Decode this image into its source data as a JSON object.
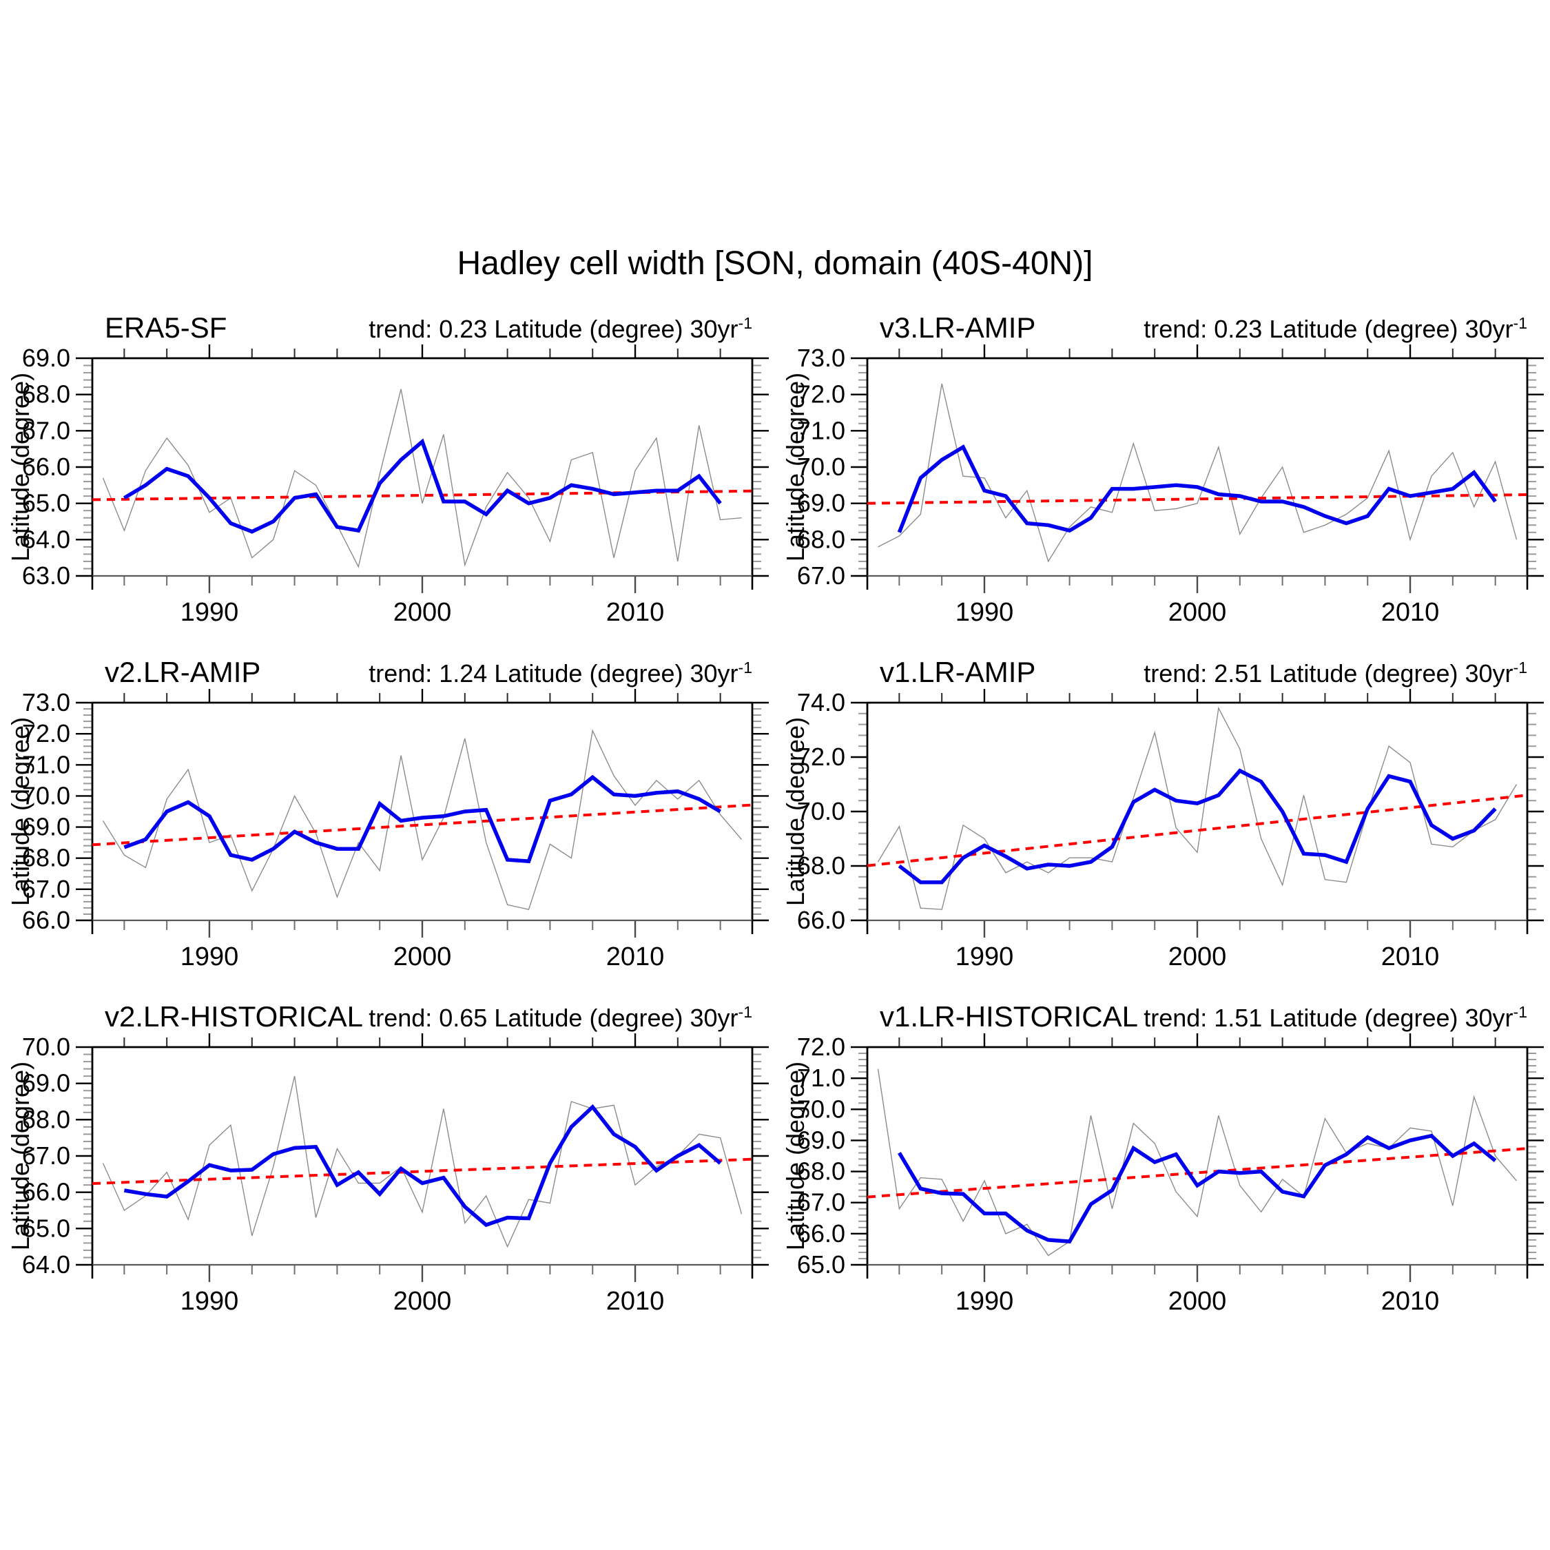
{
  "title": "Hadley cell width [SON, domain (40S-40N)]",
  "colors": {
    "annual": "#8c8c8c",
    "smoothed": "#0000ee",
    "trend": "#ff0000",
    "axis": "#000000",
    "bottom_axis": "#5a5a5a",
    "bottom_tick": "#4a4a4a",
    "bottom_minor": "#6f6f6f",
    "side_minor": "#9a9a9a",
    "top_minor": "#2a2a2a"
  },
  "chart_data": [
    {
      "type": "line",
      "title": "ERA5-SF",
      "trend_text": "trend: 0.23 Latitude (degree) 30yr",
      "trend_sup": "-1",
      "ylabel": "Latitude (degree)",
      "ylim": [
        63.0,
        69.0
      ],
      "ytick_step": 1.0,
      "yminor_step": 0.2,
      "xlim": [
        1984.5,
        2015.5
      ],
      "xticks": [
        1990,
        2000,
        2010
      ],
      "xminor": {
        "start": 1986,
        "end": 2014,
        "step": 2
      },
      "trend_line": {
        "x": [
          1984.5,
          2015.5
        ],
        "y": [
          65.1,
          65.34
        ]
      },
      "series": [
        {
          "name": "annual",
          "start_year": 1985,
          "values": [
            65.7,
            64.25,
            65.9,
            66.8,
            66.05,
            64.75,
            65.15,
            63.5,
            64.0,
            65.9,
            65.5,
            64.4,
            63.25,
            65.8,
            68.15,
            65.0,
            66.9,
            63.3,
            64.9,
            65.85,
            65.15,
            63.95,
            66.2,
            66.4,
            63.5,
            65.9,
            66.8,
            63.4,
            67.15,
            64.55,
            64.6
          ]
        },
        {
          "name": "smoothed",
          "start_year": 1986,
          "values": [
            65.15,
            65.5,
            65.95,
            65.75,
            65.15,
            64.45,
            64.22,
            64.5,
            65.15,
            65.25,
            64.35,
            64.25,
            65.55,
            66.2,
            66.7,
            65.05,
            65.05,
            64.7,
            65.35,
            65.0,
            65.15,
            65.5,
            65.4,
            65.25,
            65.3,
            65.35,
            65.35,
            65.75,
            65.0
          ]
        }
      ]
    },
    {
      "type": "line",
      "title": "v3.LR-AMIP",
      "trend_text": "trend: 0.23 Latitude (degree) 30yr",
      "trend_sup": "-1",
      "ylabel": "Latitude (degree)",
      "ylim": [
        67.0,
        73.0
      ],
      "ytick_step": 1.0,
      "yminor_step": 0.2,
      "xlim": [
        1984.5,
        2015.5
      ],
      "xticks": [
        1990,
        2000,
        2010
      ],
      "xminor": {
        "start": 1986,
        "end": 2014,
        "step": 2
      },
      "trend_line": {
        "x": [
          1984.5,
          2015.5
        ],
        "y": [
          69.0,
          69.24
        ]
      },
      "series": [
        {
          "name": "annual",
          "start_year": 1985,
          "values": [
            67.8,
            68.1,
            68.7,
            72.3,
            69.75,
            69.7,
            68.6,
            69.35,
            67.4,
            68.35,
            68.9,
            68.75,
            70.65,
            68.8,
            68.85,
            69.0,
            70.55,
            68.15,
            69.15,
            70.0,
            68.2,
            68.4,
            68.7,
            69.15,
            70.45,
            68.0,
            69.75,
            70.4,
            68.9,
            70.15,
            68.0
          ]
        },
        {
          "name": "smoothed",
          "start_year": 1986,
          "values": [
            68.2,
            69.7,
            70.2,
            70.55,
            69.35,
            69.2,
            68.45,
            68.4,
            68.25,
            68.6,
            69.4,
            69.4,
            69.45,
            69.5,
            69.45,
            69.25,
            69.2,
            69.05,
            69.05,
            68.9,
            68.65,
            68.45,
            68.65,
            69.4,
            69.2,
            69.3,
            69.4,
            69.85,
            69.05
          ]
        }
      ]
    },
    {
      "type": "line",
      "title": "v2.LR-AMIP",
      "trend_text": "trend: 1.24 Latitude (degree) 30yr",
      "trend_sup": "-1",
      "ylabel": "Latitude (degree)",
      "ylim": [
        66.0,
        73.0
      ],
      "ytick_step": 1.0,
      "yminor_step": 0.2,
      "xlim": [
        1984.5,
        2015.5
      ],
      "xticks": [
        1990,
        2000,
        2010
      ],
      "xminor": {
        "start": 1986,
        "end": 2014,
        "step": 2
      },
      "trend_line": {
        "x": [
          1984.5,
          2015.5
        ],
        "y": [
          68.43,
          69.71
        ]
      },
      "series": [
        {
          "name": "annual",
          "start_year": 1985,
          "values": [
            69.2,
            68.1,
            67.7,
            69.9,
            70.85,
            68.5,
            68.75,
            66.95,
            68.3,
            70.0,
            68.8,
            66.75,
            68.5,
            67.6,
            71.3,
            67.95,
            69.3,
            71.85,
            68.5,
            66.5,
            66.35,
            68.45,
            68.0,
            72.1,
            70.65,
            69.7,
            70.5,
            69.9,
            70.5,
            69.4,
            68.6
          ]
        },
        {
          "name": "smoothed",
          "start_year": 1986,
          "values": [
            68.35,
            68.6,
            69.5,
            69.8,
            69.35,
            68.1,
            67.95,
            68.3,
            68.85,
            68.5,
            68.3,
            68.3,
            69.75,
            69.2,
            69.3,
            69.35,
            69.5,
            69.55,
            67.95,
            67.9,
            69.85,
            70.05,
            70.6,
            70.05,
            70.0,
            70.1,
            70.15,
            69.9,
            69.5
          ]
        }
      ]
    },
    {
      "type": "line",
      "title": "v1.LR-AMIP",
      "trend_text": "trend: 2.51 Latitude (degree) 30yr",
      "trend_sup": "-1",
      "ylabel": "Latitude (degree)",
      "ylim": [
        66.0,
        74.0
      ],
      "ytick_step": 2.0,
      "yminor_step": 0.4,
      "xlim": [
        1984.5,
        2015.5
      ],
      "xticks": [
        1990,
        2000,
        2010
      ],
      "xminor": {
        "start": 1986,
        "end": 2014,
        "step": 2
      },
      "trend_line": {
        "x": [
          1984.5,
          2015.5
        ],
        "y": [
          68.01,
          70.6
        ]
      },
      "series": [
        {
          "name": "annual",
          "start_year": 1985,
          "values": [
            68.15,
            69.45,
            66.45,
            66.4,
            69.5,
            69.0,
            67.75,
            68.15,
            67.75,
            68.3,
            68.3,
            68.15,
            70.5,
            72.9,
            69.4,
            68.5,
            73.8,
            72.3,
            69.0,
            67.3,
            70.6,
            67.5,
            67.4,
            70.0,
            72.4,
            71.8,
            68.8,
            68.7,
            69.3,
            69.7,
            71.0
          ]
        },
        {
          "name": "smoothed",
          "start_year": 1986,
          "values": [
            68.0,
            67.4,
            67.4,
            68.3,
            68.75,
            68.35,
            67.9,
            68.05,
            68.0,
            68.15,
            68.7,
            70.35,
            70.8,
            70.4,
            70.3,
            70.6,
            71.5,
            71.1,
            70.0,
            68.45,
            68.4,
            68.15,
            70.1,
            71.3,
            71.1,
            69.5,
            69.0,
            69.3,
            70.1
          ]
        }
      ]
    },
    {
      "type": "line",
      "title": "v2.LR-HISTORICAL",
      "trend_text": "trend: 0.65 Latitude (degree) 30yr",
      "trend_sup": "-1",
      "ylabel": "Latitude (degree)",
      "ylim": [
        64.0,
        70.0
      ],
      "ytick_step": 1.0,
      "yminor_step": 0.2,
      "xlim": [
        1984.5,
        2015.5
      ],
      "xticks": [
        1990,
        2000,
        2010
      ],
      "xminor": {
        "start": 1986,
        "end": 2014,
        "step": 2
      },
      "trend_line": {
        "x": [
          1984.5,
          2015.5
        ],
        "y": [
          66.24,
          66.91
        ]
      },
      "series": [
        {
          "name": "annual",
          "start_year": 1985,
          "values": [
            66.8,
            65.5,
            65.9,
            66.55,
            65.25,
            67.3,
            67.85,
            64.8,
            66.7,
            69.2,
            65.3,
            67.2,
            66.25,
            66.25,
            66.7,
            65.45,
            68.3,
            65.15,
            65.9,
            64.5,
            65.8,
            65.7,
            68.5,
            68.3,
            68.4,
            66.2,
            66.7,
            67.0,
            67.6,
            67.5,
            65.4
          ]
        },
        {
          "name": "smoothed",
          "start_year": 1986,
          "values": [
            66.05,
            65.95,
            65.88,
            66.3,
            66.75,
            66.6,
            66.62,
            67.05,
            67.22,
            67.25,
            66.2,
            66.55,
            65.95,
            66.65,
            66.25,
            66.4,
            65.6,
            65.1,
            65.3,
            65.28,
            66.8,
            67.8,
            68.35,
            67.6,
            67.25,
            66.6,
            67.0,
            67.3,
            66.8
          ]
        }
      ]
    },
    {
      "type": "line",
      "title": "v1.LR-HISTORICAL",
      "trend_text": "trend: 1.51 Latitude (degree) 30yr",
      "trend_sup": "-1",
      "ylabel": "Latitude (degree)",
      "ylim": [
        65.0,
        72.0
      ],
      "ytick_step": 1.0,
      "yminor_step": 0.2,
      "xlim": [
        1984.5,
        2015.5
      ],
      "xticks": [
        1990,
        2000,
        2010
      ],
      "xminor": {
        "start": 1986,
        "end": 2014,
        "step": 2
      },
      "trend_line": {
        "x": [
          1984.5,
          2015.5
        ],
        "y": [
          67.18,
          68.74
        ]
      },
      "series": [
        {
          "name": "annual",
          "start_year": 1985,
          "values": [
            71.3,
            66.8,
            67.8,
            67.75,
            66.4,
            67.7,
            66.0,
            66.3,
            65.3,
            65.75,
            69.8,
            66.8,
            69.55,
            68.9,
            67.35,
            66.55,
            69.8,
            67.55,
            66.7,
            67.75,
            67.2,
            69.7,
            68.6,
            68.9,
            68.75,
            69.4,
            69.3,
            66.9,
            70.4,
            68.5,
            67.7
          ]
        },
        {
          "name": "smoothed",
          "start_year": 1986,
          "values": [
            68.6,
            67.45,
            67.3,
            67.28,
            66.65,
            66.65,
            66.1,
            65.8,
            65.75,
            66.95,
            67.4,
            68.75,
            68.3,
            68.55,
            67.55,
            68.0,
            67.95,
            68.0,
            67.35,
            67.2,
            68.2,
            68.55,
            69.1,
            68.75,
            69.0,
            69.15,
            68.5,
            68.9,
            68.35
          ]
        }
      ]
    }
  ]
}
